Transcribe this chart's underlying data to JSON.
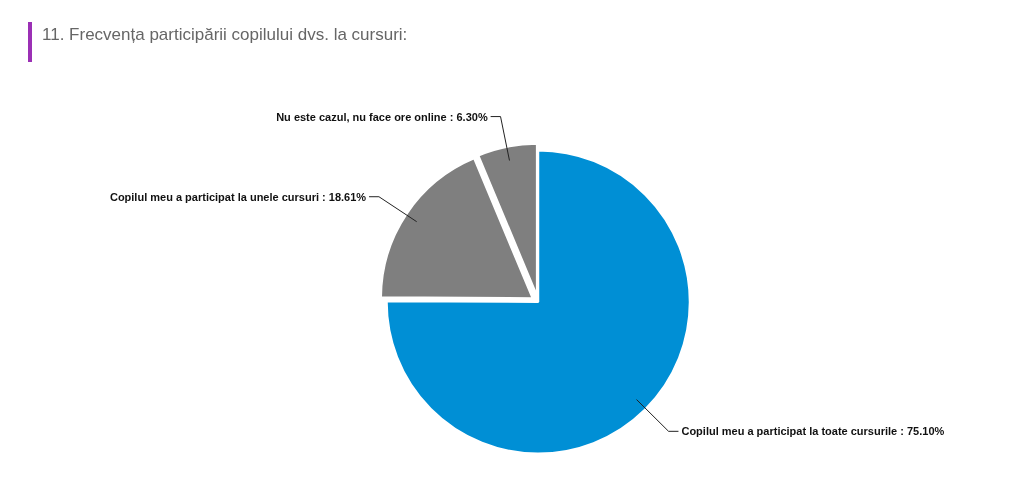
{
  "chart_data": {
    "type": "pie",
    "title": "11. Frecvența participării copilului dvs. la cursuri:",
    "categories": [
      "Copilul meu a participat la toate cursurile",
      "Copilul meu a participat la unele cursuri",
      "Nu este cazul, nu face ore online"
    ],
    "values": [
      75.1,
      18.61,
      6.3
    ],
    "value_labels": [
      "75.10%",
      "18.61%",
      "6.30%"
    ],
    "colors": [
      "#008fd5",
      "#7f7f7f",
      "#7f7f7f"
    ]
  }
}
